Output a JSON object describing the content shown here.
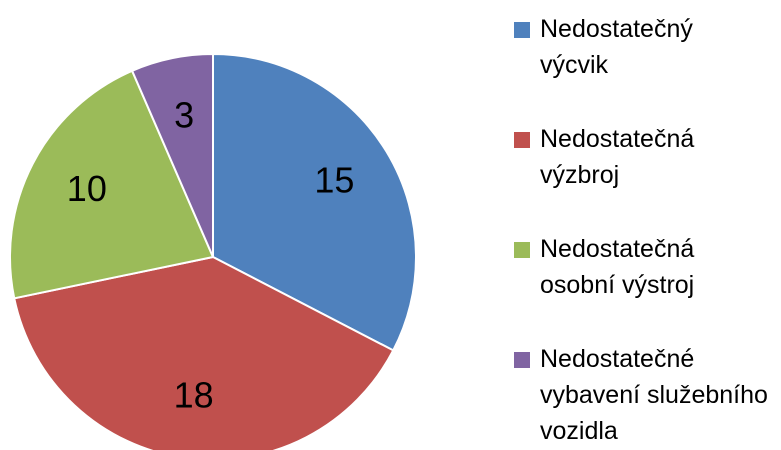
{
  "chart_data": {
    "type": "pie",
    "categories": [
      "Nedostatečný výcvik",
      "Nedostatečná výzbroj",
      "Nedostatečná osobní výstroj",
      "Nedostatečné vybavení služebního vozidla"
    ],
    "values": [
      15,
      18,
      10,
      3
    ],
    "colors": [
      "#4f81bd",
      "#c0504d",
      "#9bbb59",
      "#8064a2"
    ],
    "legend": "right"
  }
}
